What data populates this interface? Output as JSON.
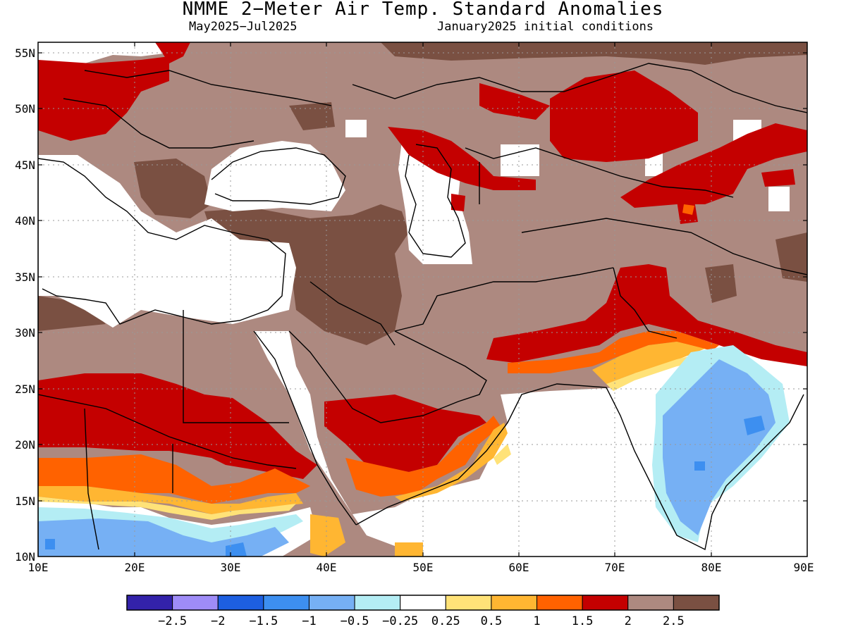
{
  "title": "NMME 2−Meter Air Temp. Standard Anomalies",
  "subtitle_left": "May2025−Jul2025",
  "subtitle_right": "January2025 initial conditions",
  "lat_labels": [
    "55N",
    "50N",
    "45N",
    "40N",
    "35N",
    "30N",
    "25N",
    "20N",
    "15N",
    "10N"
  ],
  "lon_labels": [
    "10E",
    "20E",
    "30E",
    "40E",
    "50E",
    "60E",
    "70E",
    "80E",
    "90E"
  ],
  "colorbar": {
    "colors": [
      "#3322aa",
      "#9f8cf7",
      "#1d5fe0",
      "#3d8ff0",
      "#76b0f4",
      "#b4edf4",
      "#ffffff",
      "#ffe278",
      "#ffb632",
      "#ff6200",
      "#c40000",
      "#ad8980",
      "#7a5042"
    ],
    "labels": [
      "−2.5",
      "−2",
      "−1.5",
      "−1",
      "−0.5",
      "−0.25",
      "0.25",
      "0.5",
      "1",
      "1.5",
      "2",
      "2.5"
    ]
  },
  "colors": {
    "brown_light": "#ad8980",
    "brown_dark": "#7a5042",
    "red": "#c40000",
    "orange": "#ff6200",
    "light_orange": "#ffb632",
    "yellow": "#ffe278",
    "pale_blue": "#b4edf4",
    "light_blue": "#76b0f4",
    "blue": "#3d8ff0"
  }
}
